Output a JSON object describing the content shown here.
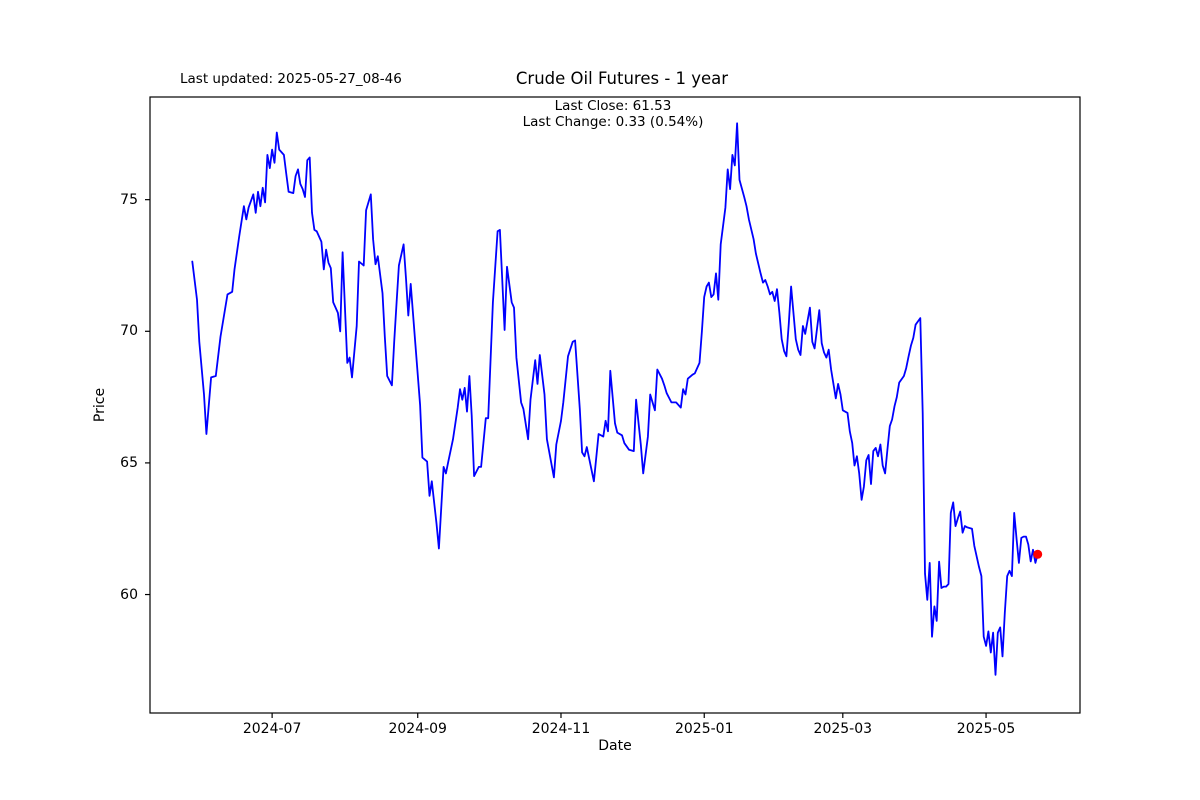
{
  "figure": {
    "title": "Crude Oil Futures - 1 year",
    "last_updated_annotation": "Last updated: 2025-05-27_08-46",
    "annotation_line1": "Last Close: 61.53",
    "annotation_line2": "Last Change: 0.33 (0.54%)",
    "xlabel": "Date",
    "ylabel": "Price"
  },
  "chart_data": {
    "type": "line",
    "title": "Crude Oil Futures - 1 year",
    "xlabel": "Date",
    "ylabel": "Price",
    "legend": "none",
    "grid": false,
    "line_color": "#0000ff",
    "line_width": 1.8,
    "marker_color": "#ff0000",
    "frame_color": "#000000",
    "last_close": 61.53,
    "last_change_abs": 0.33,
    "last_change_pct": "0.54%",
    "x_unit": "days since 2024-05-28",
    "xlim": [
      -18,
      378
    ],
    "ylim": [
      55.5,
      78.9
    ],
    "yticks": [
      60,
      65,
      70,
      75
    ],
    "xticks": [
      {
        "offset": 34,
        "label": "2024-07"
      },
      {
        "offset": 96,
        "label": "2024-09"
      },
      {
        "offset": 157,
        "label": "2024-11"
      },
      {
        "offset": 218,
        "label": "2025-01"
      },
      {
        "offset": 277,
        "label": "2025-03"
      },
      {
        "offset": 338,
        "label": "2025-05"
      }
    ],
    "series": [
      {
        "name": "price",
        "points": [
          [
            0,
            72.65
          ],
          [
            2,
            71.2
          ],
          [
            3,
            69.6
          ],
          [
            5,
            67.6
          ],
          [
            6,
            66.1
          ],
          [
            8,
            68.25
          ],
          [
            10,
            68.3
          ],
          [
            12,
            69.8
          ],
          [
            15,
            71.4
          ],
          [
            17,
            71.5
          ],
          [
            18,
            72.35
          ],
          [
            20,
            73.6
          ],
          [
            22,
            74.75
          ],
          [
            23,
            74.25
          ],
          [
            24,
            74.7
          ],
          [
            26,
            75.2
          ],
          [
            27,
            74.5
          ],
          [
            28,
            75.3
          ],
          [
            29,
            74.75
          ],
          [
            30,
            75.45
          ],
          [
            31,
            74.9
          ],
          [
            32,
            76.7
          ],
          [
            33,
            76.2
          ],
          [
            34,
            76.9
          ],
          [
            35,
            76.4
          ],
          [
            36,
            77.55
          ],
          [
            37,
            76.9
          ],
          [
            39,
            76.7
          ],
          [
            40,
            76.0
          ],
          [
            41,
            75.3
          ],
          [
            43,
            75.25
          ],
          [
            44,
            75.9
          ],
          [
            45,
            76.15
          ],
          [
            46,
            75.6
          ],
          [
            47,
            75.4
          ],
          [
            48,
            75.1
          ],
          [
            49,
            76.5
          ],
          [
            50,
            76.6
          ],
          [
            51,
            74.5
          ],
          [
            52,
            73.85
          ],
          [
            53,
            73.8
          ],
          [
            55,
            73.4
          ],
          [
            56,
            72.35
          ],
          [
            57,
            73.1
          ],
          [
            58,
            72.6
          ],
          [
            59,
            72.4
          ],
          [
            60,
            71.1
          ],
          [
            62,
            70.7
          ],
          [
            63,
            70.0
          ],
          [
            64,
            73.0
          ],
          [
            66,
            68.8
          ],
          [
            67,
            69.0
          ],
          [
            68,
            68.25
          ],
          [
            70,
            70.2
          ],
          [
            71,
            72.65
          ],
          [
            73,
            72.5
          ],
          [
            74,
            74.6
          ],
          [
            76,
            75.2
          ],
          [
            77,
            73.5
          ],
          [
            78,
            72.55
          ],
          [
            79,
            72.85
          ],
          [
            81,
            71.45
          ],
          [
            82,
            69.8
          ],
          [
            83,
            68.3
          ],
          [
            85,
            67.95
          ],
          [
            86,
            69.6
          ],
          [
            87,
            71.1
          ],
          [
            88,
            72.5
          ],
          [
            90,
            73.3
          ],
          [
            91,
            72.0
          ],
          [
            92,
            70.6
          ],
          [
            93,
            71.8
          ],
          [
            95,
            69.5
          ],
          [
            97,
            67.2
          ],
          [
            98,
            65.2
          ],
          [
            100,
            65.05
          ],
          [
            101,
            63.75
          ],
          [
            102,
            64.3
          ],
          [
            104,
            62.7
          ],
          [
            105,
            61.75
          ],
          [
            107,
            64.85
          ],
          [
            108,
            64.6
          ],
          [
            109,
            65.05
          ],
          [
            111,
            65.9
          ],
          [
            113,
            67.1
          ],
          [
            114,
            67.8
          ],
          [
            115,
            67.4
          ],
          [
            116,
            67.85
          ],
          [
            117,
            66.95
          ],
          [
            118,
            68.3
          ],
          [
            119,
            66.8
          ],
          [
            120,
            64.5
          ],
          [
            122,
            64.85
          ],
          [
            123,
            64.85
          ],
          [
            125,
            66.7
          ],
          [
            126,
            66.7
          ],
          [
            128,
            71.1
          ],
          [
            130,
            73.8
          ],
          [
            131,
            73.85
          ],
          [
            133,
            70.05
          ],
          [
            134,
            72.45
          ],
          [
            136,
            71.1
          ],
          [
            137,
            70.9
          ],
          [
            138,
            69.0
          ],
          [
            140,
            67.3
          ],
          [
            141,
            67.05
          ],
          [
            143,
            65.9
          ],
          [
            144,
            67.4
          ],
          [
            146,
            68.9
          ],
          [
            147,
            68.0
          ],
          [
            148,
            69.1
          ],
          [
            150,
            67.6
          ],
          [
            151,
            65.9
          ],
          [
            154,
            64.45
          ],
          [
            155,
            65.7
          ],
          [
            157,
            66.6
          ],
          [
            158,
            67.3
          ],
          [
            160,
            69.05
          ],
          [
            162,
            69.6
          ],
          [
            163,
            69.65
          ],
          [
            165,
            67.05
          ],
          [
            166,
            65.4
          ],
          [
            167,
            65.25
          ],
          [
            168,
            65.6
          ],
          [
            171,
            64.3
          ],
          [
            173,
            66.1
          ],
          [
            175,
            66.0
          ],
          [
            176,
            66.6
          ],
          [
            177,
            66.2
          ],
          [
            178,
            68.5
          ],
          [
            180,
            66.5
          ],
          [
            181,
            66.15
          ],
          [
            183,
            66.05
          ],
          [
            184,
            65.75
          ],
          [
            186,
            65.5
          ],
          [
            188,
            65.45
          ],
          [
            189,
            67.4
          ],
          [
            191,
            65.7
          ],
          [
            192,
            64.6
          ],
          [
            194,
            66.0
          ],
          [
            195,
            67.6
          ],
          [
            197,
            67.0
          ],
          [
            198,
            68.55
          ],
          [
            200,
            68.2
          ],
          [
            201,
            67.95
          ],
          [
            202,
            67.65
          ],
          [
            204,
            67.3
          ],
          [
            206,
            67.3
          ],
          [
            208,
            67.1
          ],
          [
            209,
            67.8
          ],
          [
            210,
            67.6
          ],
          [
            211,
            68.2
          ],
          [
            213,
            68.35
          ],
          [
            214,
            68.4
          ],
          [
            216,
            68.8
          ],
          [
            217,
            70.0
          ],
          [
            218,
            71.3
          ],
          [
            219,
            71.7
          ],
          [
            220,
            71.85
          ],
          [
            221,
            71.3
          ],
          [
            222,
            71.4
          ],
          [
            223,
            72.2
          ],
          [
            224,
            71.2
          ],
          [
            225,
            73.3
          ],
          [
            227,
            74.7
          ],
          [
            228,
            76.15
          ],
          [
            229,
            75.4
          ],
          [
            230,
            76.7
          ],
          [
            231,
            76.3
          ],
          [
            232,
            77.9
          ],
          [
            233,
            75.75
          ],
          [
            235,
            75.1
          ],
          [
            236,
            74.75
          ],
          [
            237,
            74.25
          ],
          [
            239,
            73.5
          ],
          [
            240,
            72.95
          ],
          [
            242,
            72.2
          ],
          [
            243,
            71.85
          ],
          [
            244,
            71.95
          ],
          [
            245,
            71.7
          ],
          [
            246,
            71.4
          ],
          [
            247,
            71.5
          ],
          [
            248,
            71.15
          ],
          [
            249,
            71.6
          ],
          [
            250,
            70.7
          ],
          [
            251,
            69.7
          ],
          [
            252,
            69.25
          ],
          [
            253,
            69.05
          ],
          [
            254,
            70.3
          ],
          [
            255,
            71.7
          ],
          [
            257,
            69.7
          ],
          [
            258,
            69.3
          ],
          [
            259,
            69.1
          ],
          [
            260,
            70.2
          ],
          [
            261,
            69.9
          ],
          [
            263,
            70.9
          ],
          [
            264,
            69.6
          ],
          [
            265,
            69.35
          ],
          [
            267,
            70.8
          ],
          [
            268,
            69.55
          ],
          [
            269,
            69.2
          ],
          [
            270,
            69.0
          ],
          [
            271,
            69.3
          ],
          [
            272,
            68.55
          ],
          [
            274,
            67.45
          ],
          [
            275,
            68.0
          ],
          [
            276,
            67.6
          ],
          [
            277,
            67.0
          ],
          [
            279,
            66.9
          ],
          [
            280,
            66.2
          ],
          [
            281,
            65.76
          ],
          [
            282,
            64.9
          ],
          [
            283,
            65.25
          ],
          [
            284,
            64.6
          ],
          [
            285,
            63.6
          ],
          [
            286,
            64.1
          ],
          [
            287,
            65.1
          ],
          [
            288,
            65.3
          ],
          [
            289,
            64.2
          ],
          [
            290,
            65.45
          ],
          [
            291,
            65.57
          ],
          [
            292,
            65.25
          ],
          [
            293,
            65.7
          ],
          [
            294,
            64.9
          ],
          [
            295,
            64.6
          ],
          [
            296,
            65.5
          ],
          [
            297,
            66.4
          ],
          [
            298,
            66.65
          ],
          [
            299,
            67.15
          ],
          [
            300,
            67.5
          ],
          [
            301,
            68.05
          ],
          [
            303,
            68.3
          ],
          [
            304,
            68.6
          ],
          [
            305,
            69.05
          ],
          [
            306,
            69.45
          ],
          [
            307,
            69.75
          ],
          [
            308,
            70.25
          ],
          [
            310,
            70.5
          ],
          [
            311,
            66.9
          ],
          [
            312,
            60.8
          ],
          [
            313,
            59.8
          ],
          [
            314,
            61.2
          ],
          [
            315,
            58.4
          ],
          [
            316,
            59.55
          ],
          [
            317,
            59.0
          ],
          [
            318,
            61.25
          ],
          [
            319,
            60.25
          ],
          [
            320,
            60.3
          ],
          [
            321,
            60.3
          ],
          [
            322,
            60.4
          ],
          [
            323,
            63.1
          ],
          [
            324,
            63.5
          ],
          [
            325,
            62.6
          ],
          [
            326,
            62.9
          ],
          [
            327,
            63.15
          ],
          [
            328,
            62.35
          ],
          [
            329,
            62.6
          ],
          [
            330,
            62.55
          ],
          [
            332,
            62.5
          ],
          [
            333,
            61.85
          ],
          [
            335,
            61.05
          ],
          [
            336,
            60.7
          ],
          [
            337,
            58.4
          ],
          [
            338,
            58.05
          ],
          [
            339,
            58.6
          ],
          [
            340,
            57.8
          ],
          [
            341,
            58.55
          ],
          [
            342,
            56.95
          ],
          [
            343,
            58.55
          ],
          [
            344,
            58.75
          ],
          [
            345,
            57.65
          ],
          [
            346,
            59.3
          ],
          [
            347,
            60.7
          ],
          [
            348,
            60.9
          ],
          [
            349,
            60.7
          ],
          [
            350,
            63.1
          ],
          [
            351,
            62.1
          ],
          [
            352,
            61.2
          ],
          [
            353,
            62.15
          ],
          [
            354,
            62.2
          ],
          [
            355,
            62.2
          ],
          [
            356,
            61.9
          ],
          [
            357,
            61.26
          ],
          [
            358,
            61.7
          ],
          [
            359,
            61.2
          ],
          [
            360,
            61.53
          ]
        ]
      }
    ]
  }
}
